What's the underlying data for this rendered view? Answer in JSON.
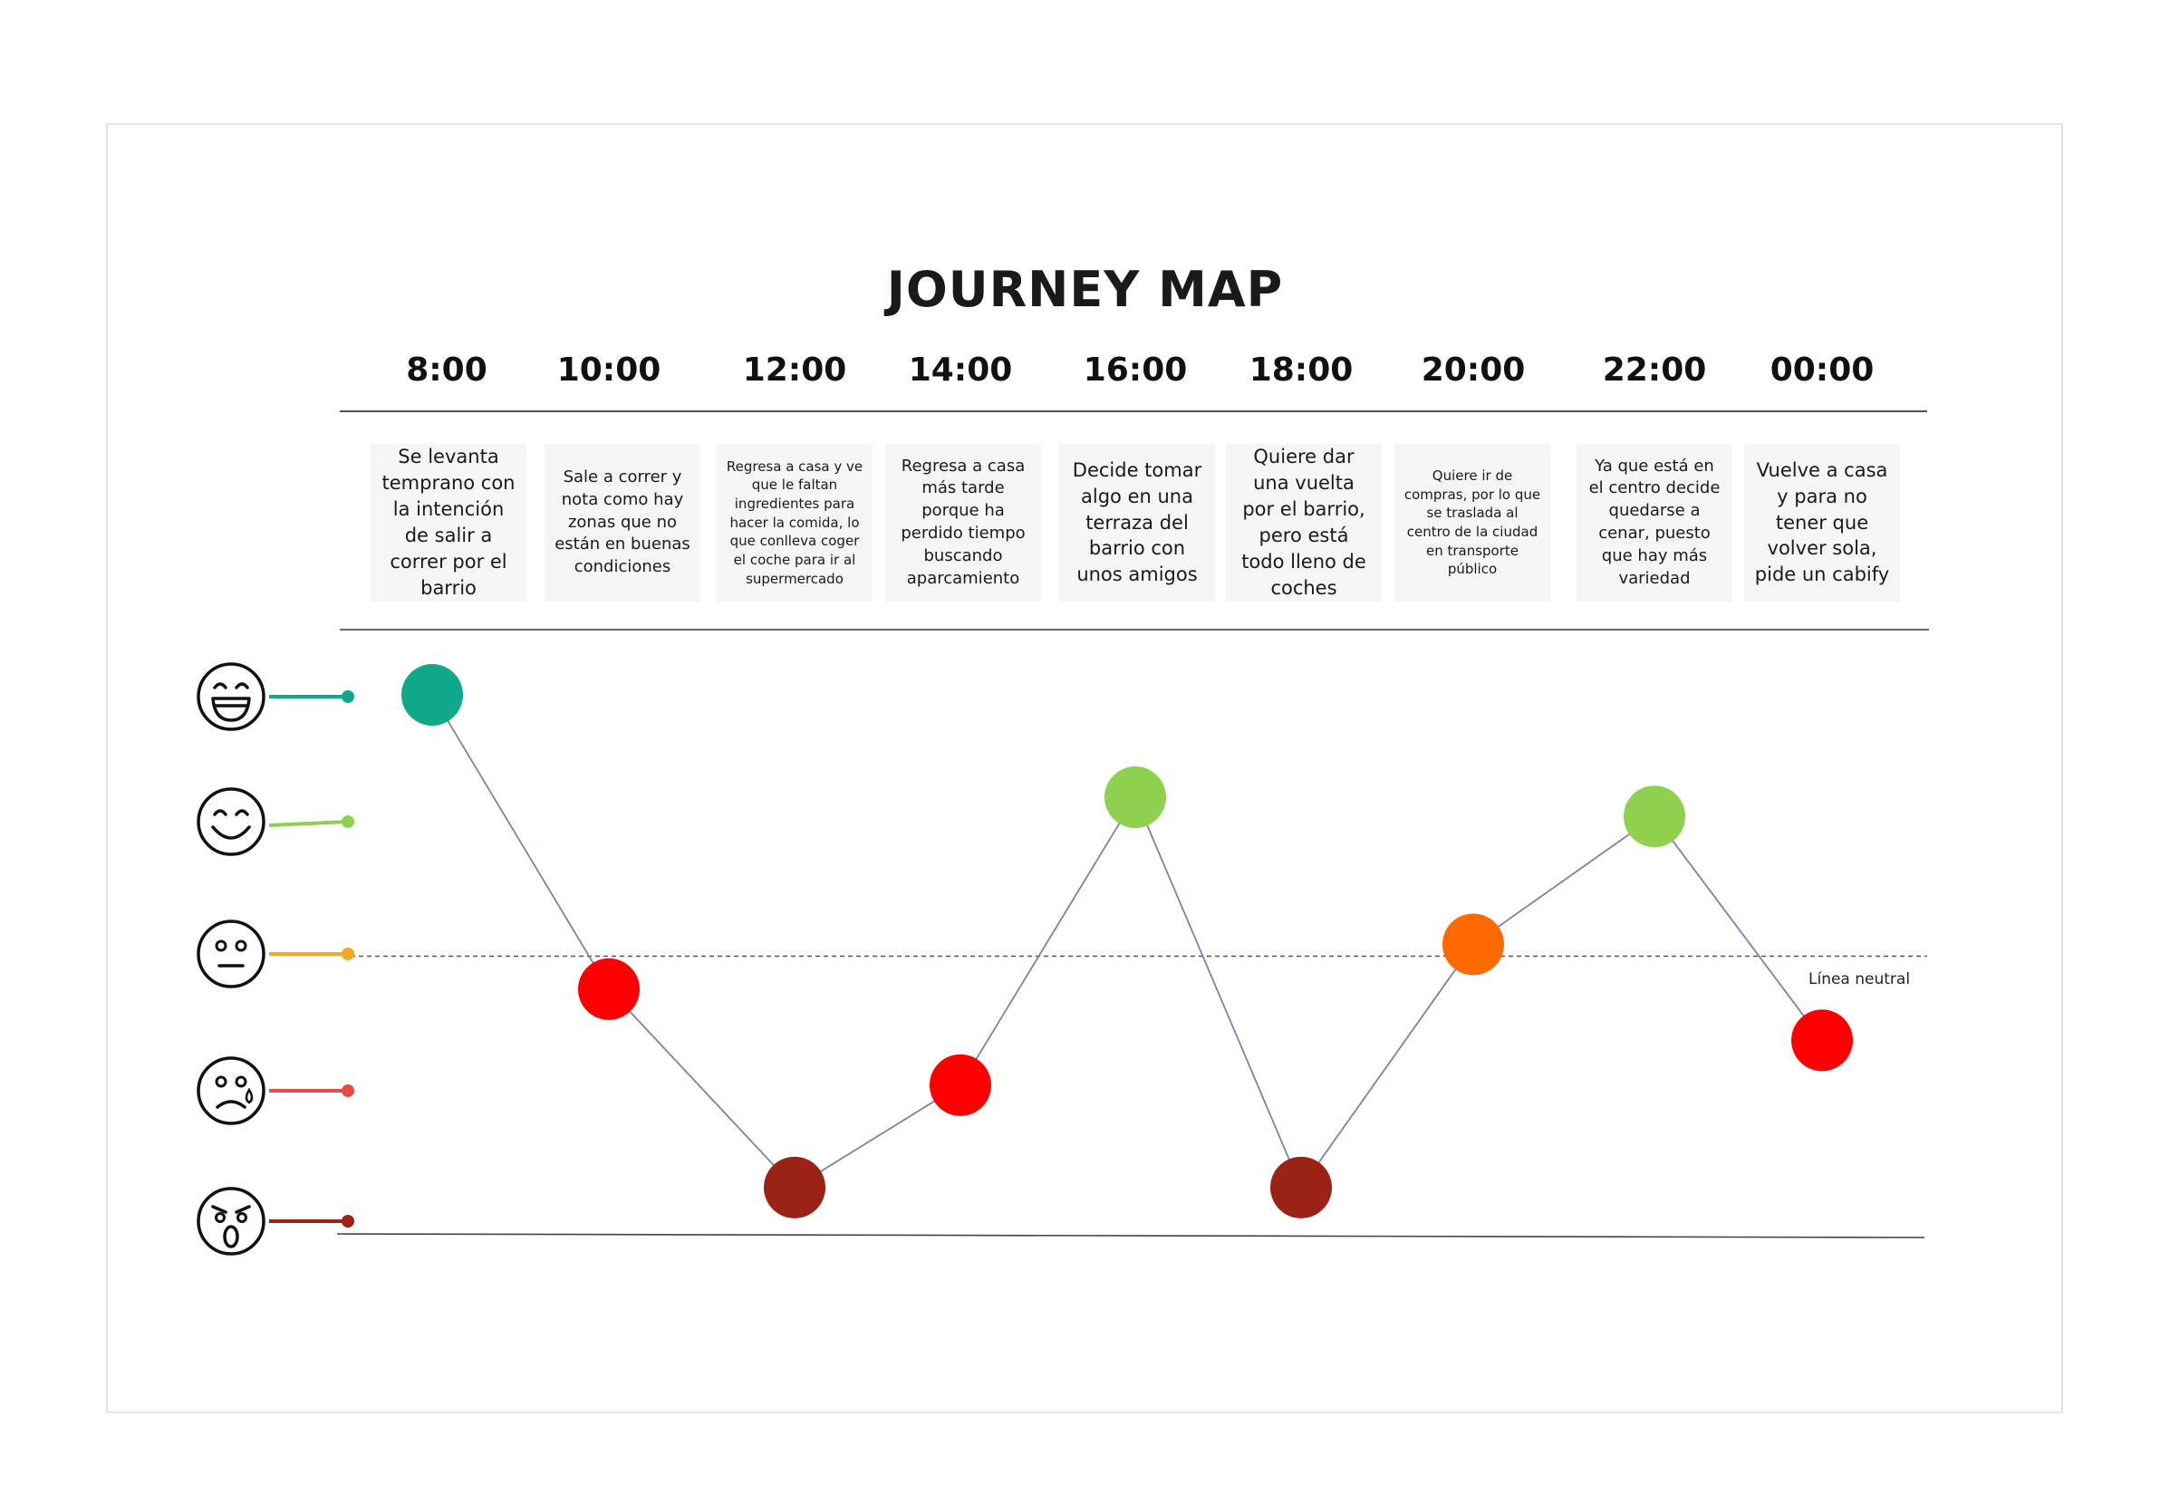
{
  "title": "JOURNEY MAP",
  "neutral_label": "Línea neutral",
  "chart_data": {
    "type": "line",
    "title": "JOURNEY MAP",
    "categories": [
      "8:00",
      "10:00",
      "12:00",
      "14:00",
      "16:00",
      "18:00",
      "20:00",
      "22:00",
      "00:00"
    ],
    "notes": [
      "Se levanta temprano con la intención de salir a correr por el barrio",
      "Sale a correr y nota como hay zonas que no están en buenas condiciones",
      "Regresa a casa y ve que le faltan ingredientes para hacer la comida, lo que conlleva coger el coche para ir al supermercado",
      "Regresa a casa más tarde porque ha perdido tiempo buscando aparcamiento",
      "Decide tomar algo en una terraza del barrio con unos amigos",
      "Quiere dar una vuelta por el barrio, pero está todo lleno de coches",
      "Quiere ir de compras, por lo que se traslada al centro de la ciudad en transporte público",
      "Ya que está en el centro decide quedarse a cenar, puesto que hay más variedad",
      "Vuelve a casa y para no tener que volver sola, pide un cabify"
    ],
    "values": [
      2,
      -0.3,
      -1.85,
      -1.05,
      1.2,
      -1.85,
      0.05,
      1.05,
      -0.7
    ],
    "ylim": [
      -2,
      2
    ],
    "neutral_value": 0,
    "emotion_levels": [
      {
        "level": 2,
        "icon": "laughing-face-icon",
        "color": "#0fa88a"
      },
      {
        "level": 1,
        "icon": "smiling-face-icon",
        "color": "#8fd14f"
      },
      {
        "level": 0,
        "icon": "neutral-face-icon",
        "color": "#f5a623"
      },
      {
        "level": -1,
        "icon": "sad-face-icon",
        "color": "#e84a4a"
      },
      {
        "level": -2,
        "icon": "angry-face-icon",
        "color": "#9b2316"
      }
    ],
    "point_colors": [
      "#0fa88a",
      "#ff0000",
      "#9b2316",
      "#ff0000",
      "#8fd14f",
      "#9b2316",
      "#ff6a00",
      "#8fd14f",
      "#ff0000"
    ],
    "line_color": "#7b7fb8",
    "grid": false
  }
}
